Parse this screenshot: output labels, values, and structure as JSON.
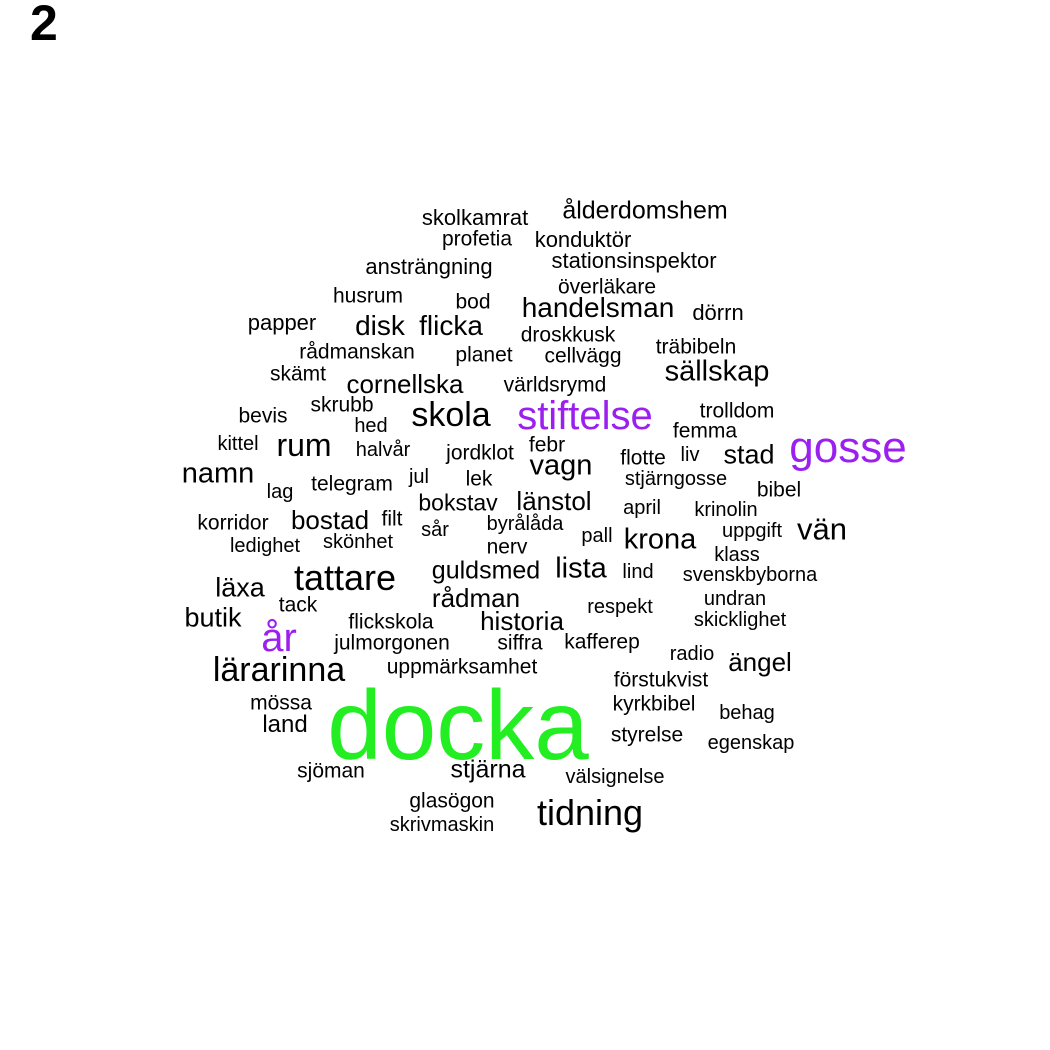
{
  "panel_label": "2",
  "colors": {
    "default": "#000000",
    "purple": "#9b20f0",
    "green": "#22ee22"
  },
  "words": [
    {
      "text": "docka",
      "size": 5,
      "color": "green"
    },
    {
      "text": "gosse",
      "size": 4,
      "color": "purple"
    },
    {
      "text": "stiftelse",
      "size": 4,
      "color": "purple"
    },
    {
      "text": "år",
      "size": 4,
      "color": "purple"
    },
    {
      "text": "tattare",
      "size": 3
    },
    {
      "text": "tidning",
      "size": 3
    },
    {
      "text": "skola",
      "size": 3
    },
    {
      "text": "lärarinna",
      "size": 3
    },
    {
      "text": "rum",
      "size": 3
    },
    {
      "text": "sällskap",
      "size": 2
    },
    {
      "text": "handelsman",
      "size": 2
    },
    {
      "text": "flicka",
      "size": 2
    },
    {
      "text": "disk",
      "size": 2
    },
    {
      "text": "cornellska",
      "size": 2
    },
    {
      "text": "namn",
      "size": 2
    },
    {
      "text": "vagn",
      "size": 2
    },
    {
      "text": "stad",
      "size": 2
    },
    {
      "text": "vän",
      "size": 2
    },
    {
      "text": "krona",
      "size": 2
    },
    {
      "text": "lista",
      "size": 2
    },
    {
      "text": "länstol",
      "size": 2
    },
    {
      "text": "bostad",
      "size": 2
    },
    {
      "text": "läxa",
      "size": 2
    },
    {
      "text": "butik",
      "size": 2
    },
    {
      "text": "rådman",
      "size": 2
    },
    {
      "text": "guldsmed",
      "size": 2
    },
    {
      "text": "historia",
      "size": 2
    },
    {
      "text": "ängel",
      "size": 2
    },
    {
      "text": "stjärna",
      "size": 2
    },
    {
      "text": "land",
      "size": 2
    },
    {
      "text": "bokstav",
      "size": 2
    },
    {
      "text": "ålderdomshem",
      "size": 1
    },
    {
      "text": "skolkamrat",
      "size": 1
    },
    {
      "text": "profetia",
      "size": 1
    },
    {
      "text": "konduktör",
      "size": 1
    },
    {
      "text": "ansträngning",
      "size": 1
    },
    {
      "text": "stationsinspektor",
      "size": 1
    },
    {
      "text": "överläkare",
      "size": 1
    },
    {
      "text": "husrum",
      "size": 1
    },
    {
      "text": "bod",
      "size": 1
    },
    {
      "text": "dörrn",
      "size": 1
    },
    {
      "text": "papper",
      "size": 1
    },
    {
      "text": "droskkusk",
      "size": 1
    },
    {
      "text": "träbibeln",
      "size": 1
    },
    {
      "text": "rådmanskan",
      "size": 1
    },
    {
      "text": "planet",
      "size": 1
    },
    {
      "text": "cellvägg",
      "size": 1
    },
    {
      "text": "skämt",
      "size": 1
    },
    {
      "text": "världsrymd",
      "size": 1
    },
    {
      "text": "skrubb",
      "size": 1
    },
    {
      "text": "bevis",
      "size": 1
    },
    {
      "text": "hed",
      "size": 1
    },
    {
      "text": "trolldom",
      "size": 1
    },
    {
      "text": "femma",
      "size": 1
    },
    {
      "text": "kittel",
      "size": 1
    },
    {
      "text": "halvår",
      "size": 1
    },
    {
      "text": "jordklot",
      "size": 1
    },
    {
      "text": "febr",
      "size": 1
    },
    {
      "text": "flotte",
      "size": 1
    },
    {
      "text": "liv",
      "size": 1
    },
    {
      "text": "lag",
      "size": 1
    },
    {
      "text": "telegram",
      "size": 1
    },
    {
      "text": "jul",
      "size": 1
    },
    {
      "text": "lek",
      "size": 1
    },
    {
      "text": "stjärngosse",
      "size": 1
    },
    {
      "text": "bibel",
      "size": 1
    },
    {
      "text": "april",
      "size": 1
    },
    {
      "text": "krinolin",
      "size": 1
    },
    {
      "text": "korridor",
      "size": 1
    },
    {
      "text": "filt",
      "size": 1
    },
    {
      "text": "sår",
      "size": 1
    },
    {
      "text": "byrålåda",
      "size": 1
    },
    {
      "text": "pall",
      "size": 1
    },
    {
      "text": "uppgift",
      "size": 1
    },
    {
      "text": "ledighet",
      "size": 1
    },
    {
      "text": "skönhet",
      "size": 1
    },
    {
      "text": "nerv",
      "size": 1
    },
    {
      "text": "klass",
      "size": 1
    },
    {
      "text": "lind",
      "size": 1
    },
    {
      "text": "svenskbyborna",
      "size": 1
    },
    {
      "text": "tack",
      "size": 1
    },
    {
      "text": "respekt",
      "size": 1
    },
    {
      "text": "undran",
      "size": 1
    },
    {
      "text": "flickskola",
      "size": 1
    },
    {
      "text": "skicklighet",
      "size": 1
    },
    {
      "text": "julmorgonen",
      "size": 1
    },
    {
      "text": "siffra",
      "size": 1
    },
    {
      "text": "kafferep",
      "size": 1
    },
    {
      "text": "radio",
      "size": 1
    },
    {
      "text": "uppmärksamhet",
      "size": 1
    },
    {
      "text": "förstukvist",
      "size": 1
    },
    {
      "text": "mössa",
      "size": 1
    },
    {
      "text": "kyrkbibel",
      "size": 1
    },
    {
      "text": "behag",
      "size": 1
    },
    {
      "text": "styrelse",
      "size": 1
    },
    {
      "text": "egenskap",
      "size": 1
    },
    {
      "text": "sjöman",
      "size": 1
    },
    {
      "text": "välsignelse",
      "size": 1
    },
    {
      "text": "glasögon",
      "size": 1
    },
    {
      "text": "skrivmaskin",
      "size": 1
    }
  ]
}
